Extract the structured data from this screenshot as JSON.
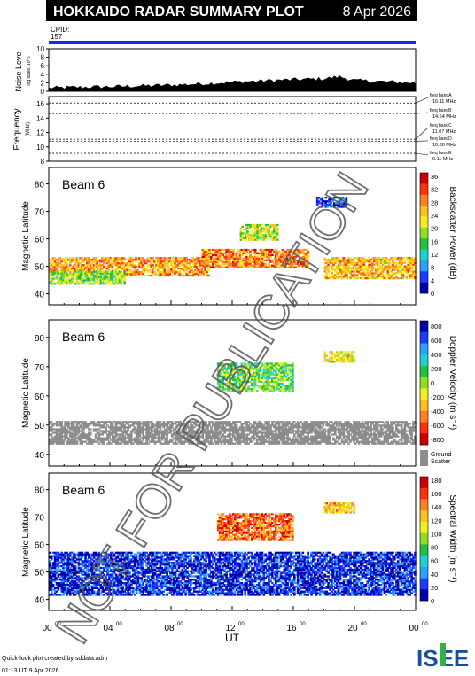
{
  "header": {
    "title": "HOKKAIDO RADAR SUMMARY PLOT",
    "date": "8 Apr 2026"
  },
  "cpid": {
    "label": "CPID:",
    "value": "157"
  },
  "noise_panel": {
    "ylabel_main": "Noise Level",
    "ylabel_sub": "log scale, 10^6",
    "ticks": [
      "0",
      "2",
      "4",
      "6",
      "8",
      "10"
    ]
  },
  "freq_panel": {
    "ylabel_main": "Frequency",
    "ylabel_unit": "(MHz)",
    "ticks": [
      "8",
      "10",
      "12",
      "14",
      "16"
    ],
    "bands": [
      {
        "label": "freq bandA",
        "value": "16.11 MHz"
      },
      {
        "label": "freq bandB",
        "value": "14.64 MHz"
      },
      {
        "label": "freq bandC",
        "value": "11.07 MHz"
      },
      {
        "label": "freq bandD",
        "value": "10.80 MHz"
      },
      {
        "label": "freq bandE",
        "value": "9.11 MHz"
      }
    ]
  },
  "panels": [
    {
      "beam_label": "Beam  6",
      "ylabel": "Magnetic Latitude",
      "cbar_label": "Backscatter Power (dB)",
      "cbar_ticks": [
        "0",
        "4",
        "8",
        "12",
        "16",
        "20",
        "24",
        "28",
        "32",
        "36"
      ],
      "colors": [
        "#0000aa",
        "#1a3cff",
        "#2aa0ff",
        "#20d0d0",
        "#20c040",
        "#90e020",
        "#f0f020",
        "#ffc020",
        "#ff8020",
        "#ff3010",
        "#cc0000"
      ]
    },
    {
      "beam_label": "Beam  6",
      "ylabel": "Magnetic Latitude",
      "cbar_label": "Doppler Velocity (m s⁻¹)",
      "cbar_ticks": [
        "800",
        "600",
        "400",
        "200",
        "0",
        "-200",
        "-400",
        "-600",
        "-800"
      ],
      "colors": [
        "#0000aa",
        "#1a3cff",
        "#2aa0ff",
        "#20d0d0",
        "#20c040",
        "#90e020",
        "#f0f020",
        "#ffc020",
        "#ff8020",
        "#ff3010",
        "#cc0000"
      ],
      "ground_label_1": "Ground",
      "ground_label_2": "Scatter"
    },
    {
      "beam_label": "Beam  6",
      "ylabel": "Magnetic Latitude",
      "cbar_label": "Spectral Width (m s⁻¹)",
      "cbar_ticks": [
        "0",
        "20",
        "40",
        "60",
        "80",
        "100",
        "120",
        "140",
        "160",
        "180"
      ],
      "colors": [
        "#0000aa",
        "#1a3cff",
        "#2aa0ff",
        "#20d0d0",
        "#20c040",
        "#90e020",
        "#f0f020",
        "#ffc020",
        "#ff8020",
        "#ff3010",
        "#cc0000"
      ]
    }
  ],
  "x_axis": {
    "ticks": [
      "00",
      "04",
      "08",
      "12",
      "16",
      "20",
      "00"
    ],
    "tick_sup": "00",
    "label": "UT"
  },
  "footer": {
    "line1": "Quick-look plot created by sddata.adm",
    "line2": "01:13 UT  9 Apr 2026",
    "logo": "ISEE"
  },
  "watermark": "NOT FOR PUBLICATION",
  "chart_data": [
    {
      "type": "area",
      "title": "Noise Level",
      "xlabel": "UT",
      "x": [
        0,
        2,
        4,
        6,
        8,
        10,
        12,
        14,
        16,
        18,
        19,
        20,
        22,
        24
      ],
      "values": [
        0.8,
        1.0,
        1.1,
        1.3,
        1.5,
        1.8,
        2.2,
        2.5,
        2.8,
        3.0,
        3.5,
        2.6,
        2.3,
        2.0
      ],
      "ylim": [
        0,
        10
      ]
    },
    {
      "type": "line",
      "title": "Frequency",
      "xlabel": "UT",
      "ylabel": "Frequency (MHz)",
      "ylim": [
        8,
        17
      ],
      "series": [
        {
          "name": "freq bandA",
          "value": 16.11
        },
        {
          "name": "freq bandB",
          "value": 14.64
        },
        {
          "name": "freq bandC",
          "value": 11.07
        },
        {
          "name": "freq bandD",
          "value": 10.8
        },
        {
          "name": "freq bandE",
          "value": 9.11
        }
      ]
    },
    {
      "type": "heatmap",
      "title": "Backscatter Power (dB)",
      "xlabel": "UT",
      "ylabel": "Magnetic Latitude",
      "xlim": [
        0,
        24
      ],
      "ylim": [
        36,
        86
      ],
      "zlim": [
        0,
        36
      ],
      "regions": [
        {
          "x": [
            0,
            10.5
          ],
          "y": [
            47,
            54
          ],
          "level": 0.75
        },
        {
          "x": [
            0,
            5
          ],
          "y": [
            44,
            49
          ],
          "level": 0.5
        },
        {
          "x": [
            10,
            17
          ],
          "y": [
            50,
            57
          ],
          "level": 0.8
        },
        {
          "x": [
            12.5,
            15
          ],
          "y": [
            60,
            66
          ],
          "level": 0.55
        },
        {
          "x": [
            18,
            24
          ],
          "y": [
            46,
            54
          ],
          "level": 0.7
        },
        {
          "x": [
            17.5,
            19.5
          ],
          "y": [
            72,
            76
          ],
          "level": 0.1
        }
      ]
    },
    {
      "type": "heatmap",
      "title": "Doppler Velocity (m s⁻¹)",
      "xlabel": "UT",
      "ylabel": "Magnetic Latitude",
      "xlim": [
        0,
        24
      ],
      "ylim": [
        36,
        86
      ],
      "zlim": [
        -800,
        800
      ],
      "regions": [
        {
          "x": [
            0,
            24
          ],
          "y": [
            44,
            52
          ],
          "level": "ground"
        },
        {
          "x": [
            11,
            16
          ],
          "y": [
            62,
            72
          ],
          "level": 0.45
        },
        {
          "x": [
            18,
            20
          ],
          "y": [
            72,
            76
          ],
          "level": 0.6
        }
      ]
    },
    {
      "type": "heatmap",
      "title": "Spectral Width (m s⁻¹)",
      "xlabel": "UT",
      "ylabel": "Magnetic Latitude",
      "xlim": [
        0,
        24
      ],
      "ylim": [
        36,
        86
      ],
      "zlim": [
        0,
        180
      ],
      "regions": [
        {
          "x": [
            0,
            24
          ],
          "y": [
            42,
            58
          ],
          "level": 0.05
        },
        {
          "x": [
            11,
            16
          ],
          "y": [
            62,
            72
          ],
          "level": 0.85
        },
        {
          "x": [
            18,
            20
          ],
          "y": [
            72,
            76
          ],
          "level": 0.7
        }
      ]
    }
  ]
}
